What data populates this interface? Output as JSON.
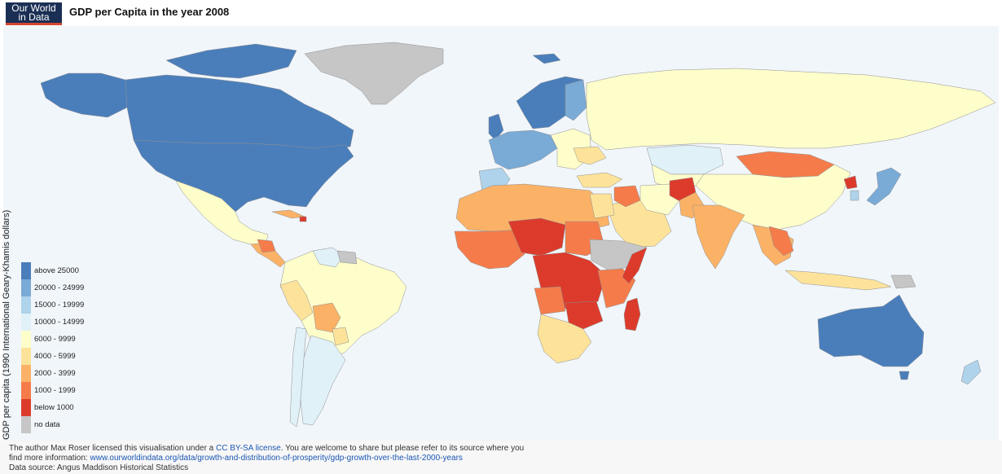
{
  "header": {
    "logo_line1": "Our World",
    "logo_line2": "in Data",
    "title": "GDP per Capita in the year 2008"
  },
  "legend": {
    "title": "GDP per capita (1990 International Geary-Khamis dollars)",
    "items": [
      {
        "label": "above 25000",
        "color": "#4a7ebb"
      },
      {
        "label": "20000 - 24999",
        "color": "#7aaad6"
      },
      {
        "label": "15000 - 19999",
        "color": "#aed3ea"
      },
      {
        "label": "10000 - 14999",
        "color": "#e0f1f8"
      },
      {
        "label": "6000 - 9999",
        "color": "#fefecb"
      },
      {
        "label": "4000 - 5999",
        "color": "#fde39a"
      },
      {
        "label": "2000 - 3999",
        "color": "#fbb266"
      },
      {
        "label": "1000 - 1999",
        "color": "#f57c4a"
      },
      {
        "label": "below 1000",
        "color": "#dc3b2c"
      },
      {
        "label": "no data",
        "color": "#c6c6c6"
      }
    ]
  },
  "footer": {
    "line1_a": "The author Max Roser licensed this visualisation under a ",
    "line1_link": "CC BY-SA license",
    "line1_b": ". You are welcome to share but please refer to its source where you",
    "line2_a": "find more information: ",
    "line2_link": "www.ourworldindata.org/data/growth-and-distribution-of-prosperity/gdp-growth-over-the-last-2000-years",
    "line3": "Data source: Angus Maddison Historical Statistics"
  },
  "colors": {
    "ocean": "#f1f6fb",
    "border": "#9a9a9a"
  }
}
